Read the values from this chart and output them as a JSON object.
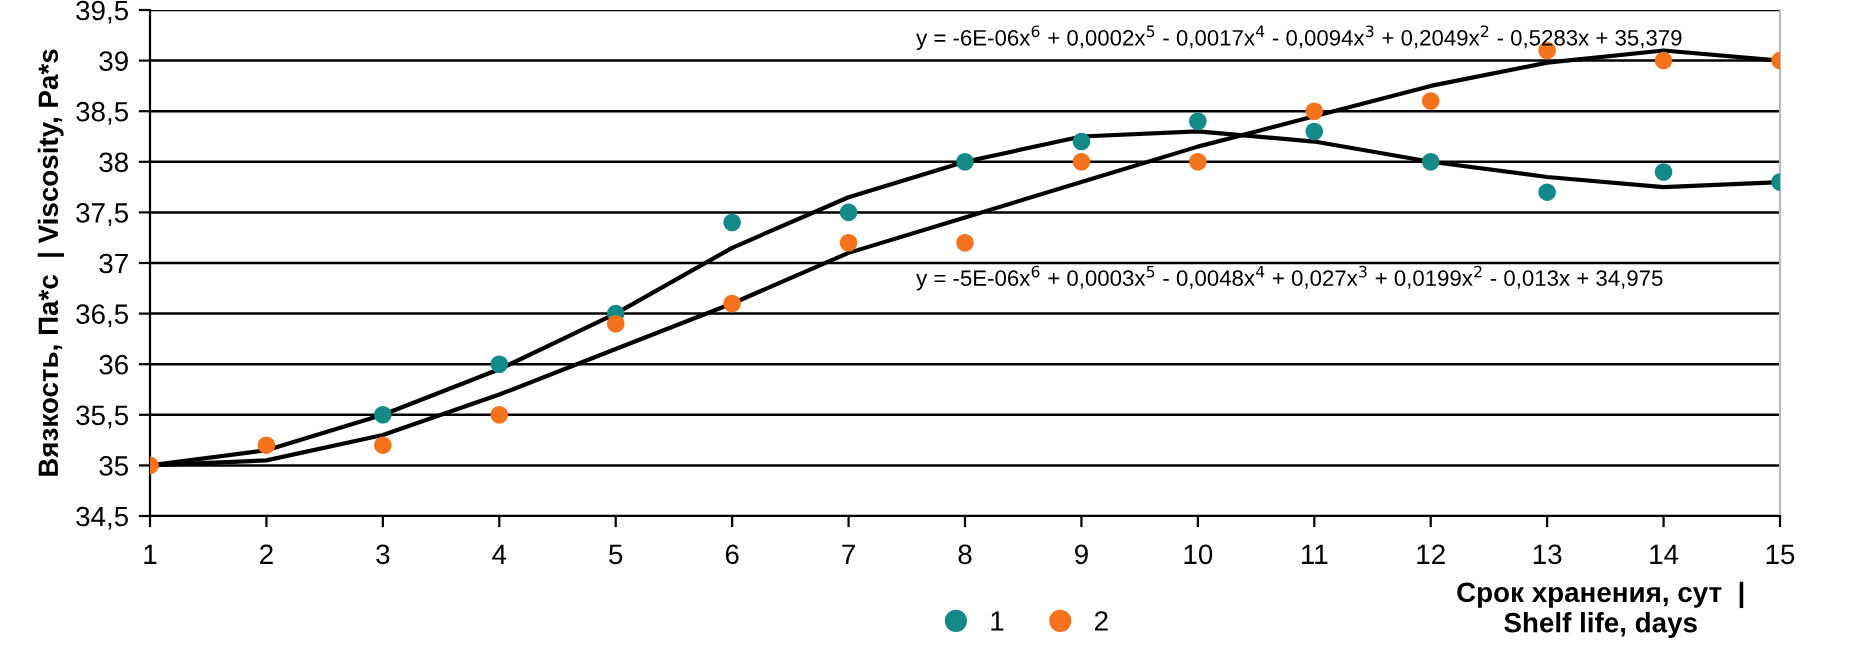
{
  "chart_data": {
    "type": "scatter",
    "xlabel": "Срок хранения, сут  |\nShelf life, days",
    "ylabel": "Вязкость, Па*с  | Viscosity, Pa*s",
    "x": [
      1,
      2,
      3,
      4,
      5,
      6,
      7,
      8,
      9,
      10,
      11,
      12,
      13,
      14,
      15
    ],
    "series": [
      {
        "name": "1",
        "color": "#138a87",
        "marker": "circle",
        "values": [
          null,
          null,
          35.5,
          36.0,
          36.5,
          37.4,
          37.5,
          38.0,
          38.2,
          38.4,
          38.3,
          38.0,
          37.7,
          37.9,
          37.8
        ]
      },
      {
        "name": "2",
        "color": "#f5731d",
        "marker": "circle",
        "values": [
          35.0,
          35.2,
          35.2,
          35.5,
          36.4,
          36.6,
          37.2,
          37.2,
          38.0,
          38.0,
          38.5,
          38.6,
          39.1,
          39.0,
          39.0
        ]
      },
      {
        "type": "line",
        "color": "#000000",
        "x": [
          1,
          2,
          3,
          4,
          5,
          6,
          7,
          8,
          9,
          10,
          11,
          12,
          13,
          14,
          15
        ],
        "values": [
          35.0,
          35.15,
          35.5,
          35.95,
          36.5,
          37.15,
          37.65,
          38.0,
          38.25,
          38.3,
          38.2,
          38.0,
          37.85,
          37.75,
          37.8
        ]
      },
      {
        "type": "line",
        "color": "#000000",
        "x": [
          1,
          2,
          3,
          4,
          5,
          6,
          7,
          8,
          9,
          10,
          11,
          12,
          13,
          14,
          15
        ],
        "values": [
          35.0,
          35.05,
          35.3,
          35.7,
          36.15,
          36.6,
          37.1,
          37.45,
          37.8,
          38.15,
          38.45,
          38.75,
          38.98,
          39.1,
          39.0
        ]
      }
    ],
    "annotations": [
      "y = -6E-06x$^{6}$ + 0,0002x$^{5}$ - 0,0017x$^{4}$ - 0,0094x$^{3}$ + 0,2049x$^{2}$ - 0,5283x + 35,379",
      "y = -5E-06x$^{6}$ + 0,0003x$^{5}$ - 0,0048x$^{4}$ + 0,027x$^{3}$ + 0,0199x$^{2}$ - 0,013x + 34,975"
    ],
    "xlim": [
      1,
      15
    ],
    "xticks": [
      1,
      2,
      3,
      4,
      5,
      6,
      7,
      8,
      9,
      10,
      11,
      12,
      13,
      14,
      15
    ],
    "ylim": [
      34.5,
      39.5
    ],
    "yticks": [
      {
        "value": 34.5,
        "label": "34,5"
      },
      35,
      {
        "value": 35.5,
        "label": "35,5"
      },
      36,
      {
        "value": 36.5,
        "label": "36,5"
      },
      37,
      {
        "value": 37.5,
        "label": "37,5"
      },
      38,
      {
        "value": 38.5,
        "label": "38,5"
      },
      39,
      {
        "value": 39.5,
        "label": "39,5"
      }
    ],
    "grid": "y",
    "legend": "bottom"
  }
}
